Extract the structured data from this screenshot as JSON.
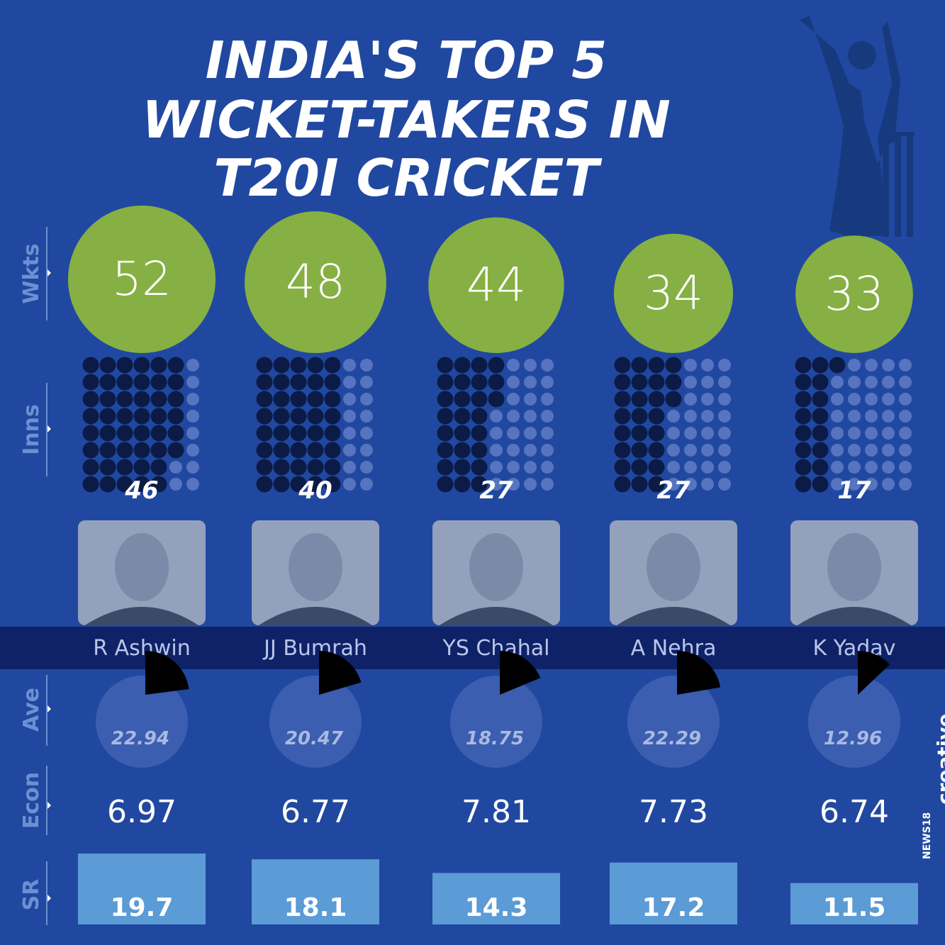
{
  "title_lines": [
    "INDIA'S TOP 5",
    "WICKET-TAKERS IN",
    "T20I CRICKET"
  ],
  "row_labels": {
    "wkts": "Wkts",
    "inns": "Inns",
    "ave": "Ave",
    "econ": "Econ",
    "sr": "SR"
  },
  "brand": {
    "news": "NEWS18",
    "creative": "creative"
  },
  "colors": {
    "background": "#2148a0",
    "wicket_circle": "#86b043",
    "dot_filled": "#0b1b45",
    "dot_empty": "#5674bf",
    "name_band": "#0f2267",
    "ave_pie": "#3b5eb0",
    "ave_slice": "#000000",
    "sr_bar": "#5b9bd6"
  },
  "icons": {
    "bowler": "cricket-bowler-silhouette-icon",
    "photo": "player-photo-icon"
  },
  "chart_data": {
    "type": "table",
    "players": [
      "R Ashwin",
      "JJ Bumrah",
      "YS Chahal",
      "A Nehra",
      "K Yadav"
    ],
    "wickets": [
      52,
      48,
      44,
      34,
      33
    ],
    "innings": [
      46,
      40,
      27,
      27,
      17
    ],
    "innings_labels": [
      "46",
      "40",
      "27",
      "27",
      "17"
    ],
    "wickets_labels": [
      "52",
      "48",
      "44",
      "34",
      "33"
    ],
    "average": [
      22.94,
      20.47,
      18.75,
      22.29,
      12.96
    ],
    "average_labels": [
      "22.94",
      "20.47",
      "18.75",
      "22.29",
      "12.96"
    ],
    "economy_labels": [
      "6.97",
      "6.77",
      "7.81",
      "7.73",
      "6.74"
    ],
    "strike_rate": [
      19.7,
      18.1,
      14.3,
      17.2,
      11.5
    ],
    "strike_rate_labels": [
      "19.7",
      "18.1",
      "14.3",
      "17.2",
      "11.5"
    ]
  }
}
